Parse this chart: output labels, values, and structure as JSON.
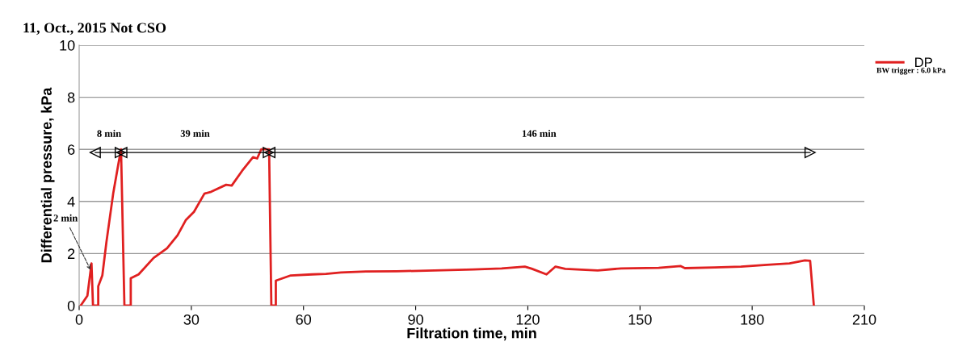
{
  "chart_data": {
    "type": "line",
    "title": "11, Oct., 2015 Not CSO",
    "xlabel": "Filtration time, min",
    "ylabel": "Differential pressure, kPa",
    "series": [
      {
        "name": "DP",
        "color": "#e02020",
        "x": [
          0.4,
          2.2,
          3.3,
          3.7,
          5.1,
          5.1,
          6.2,
          7.3,
          9.1,
          10.5,
          11.2,
          12.1,
          13.8,
          13.8,
          15.9,
          19.9,
          23.5,
          26.3,
          28.5,
          30.7,
          33.5,
          35.3,
          39.3,
          40.8,
          43.6,
          46.5,
          47.6,
          48.7,
          50.8,
          51.4,
          52.6,
          52.6,
          56.6,
          62.3,
          66,
          70,
          76.7,
          85,
          95,
          105.5,
          113,
          119.2,
          121,
          125,
          127.4,
          130,
          138.7,
          145,
          155,
          160.9,
          162,
          170,
          177,
          184,
          190,
          194.1,
          195.5,
          196.5
        ],
        "values": [
          0,
          0.38,
          1.62,
          0,
          0,
          0.74,
          1.16,
          2.45,
          4.3,
          5.45,
          6.0,
          0,
          0,
          1.05,
          1.2,
          1.83,
          2.2,
          2.7,
          3.28,
          3.6,
          4.3,
          4.37,
          4.64,
          4.61,
          5.18,
          5.7,
          5.65,
          6.0,
          6.0,
          0,
          0,
          0.96,
          1.16,
          1.2,
          1.22,
          1.27,
          1.31,
          1.32,
          1.35,
          1.39,
          1.43,
          1.5,
          1.42,
          1.2,
          1.5,
          1.41,
          1.35,
          1.43,
          1.45,
          1.52,
          1.44,
          1.47,
          1.5,
          1.57,
          1.62,
          1.74,
          1.72,
          0
        ]
      },
      {
        "type": "line",
        "color": "#000000",
        "marker": "triangle",
        "x": [
          4.3,
          11.0
        ],
        "values": [
          5.88,
          5.88
        ]
      },
      {
        "type": "line",
        "color": "#000000",
        "marker": "triangle",
        "x": [
          11.4,
          50.6
        ],
        "values": [
          5.88,
          5.88
        ]
      },
      {
        "type": "line",
        "color": "#000000",
        "marker": "triangle",
        "x": [
          51.0,
          195.5
        ],
        "values": [
          5.88,
          5.88
        ]
      }
    ],
    "annotations": [
      {
        "text": "2 min",
        "x": 3.3,
        "y": 1.3
      },
      {
        "text": "8 min",
        "x": 8,
        "y": 5.88
      },
      {
        "text": "39 min",
        "x": 31,
        "y": 5.88
      },
      {
        "text": "146 min",
        "x": 123,
        "y": 5.88
      },
      "BW trigger : 6.0 kPa"
    ],
    "xlim": [
      0,
      210
    ],
    "xticks": [
      0,
      30,
      60,
      90,
      120,
      150,
      180,
      210
    ],
    "ylim": [
      0,
      10
    ],
    "yticks": [
      0,
      2,
      4,
      6,
      8,
      10
    ],
    "grid": "y",
    "legend": "top right"
  }
}
